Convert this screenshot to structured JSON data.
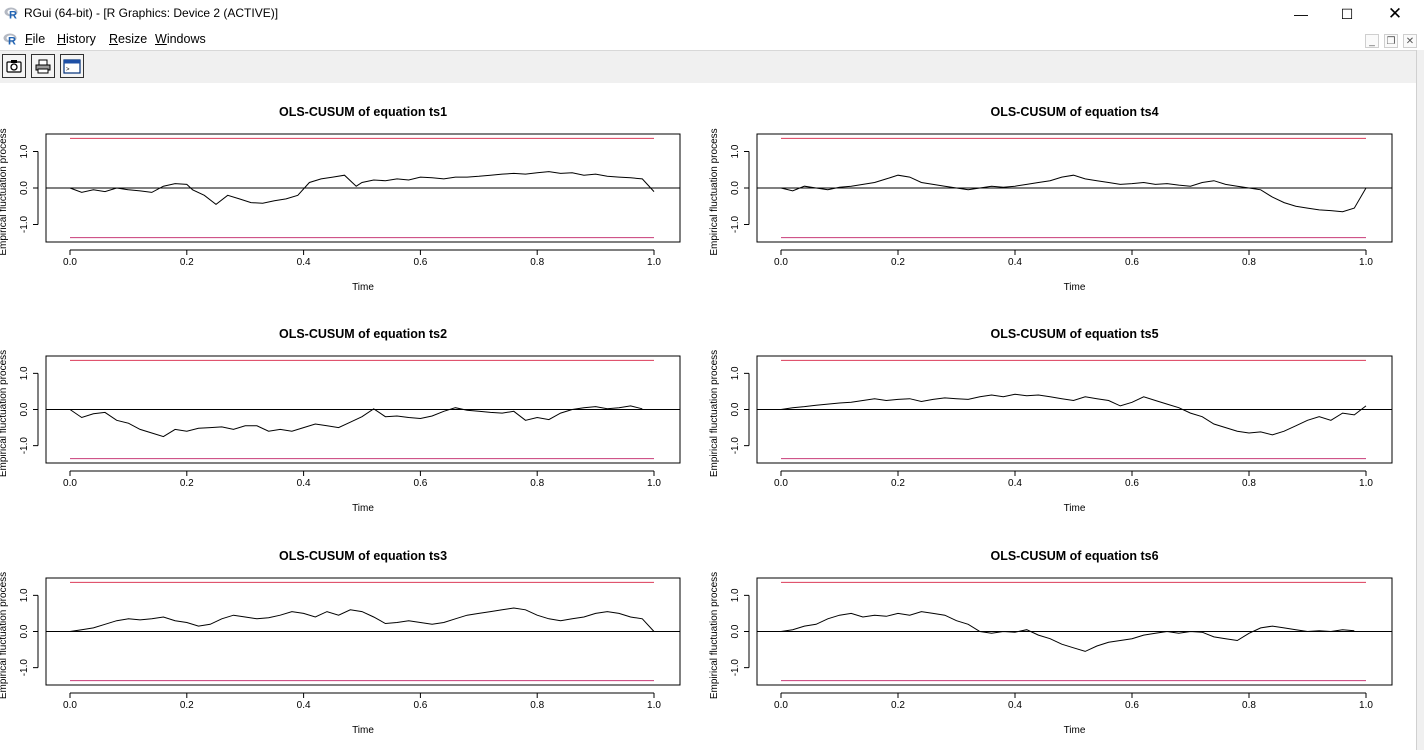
{
  "window": {
    "title": "RGui (64-bit) - [R Graphics: Device 2 (ACTIVE)]",
    "minimize_glyph": "—",
    "maximize_glyph": "☐",
    "close_glyph": "✕",
    "app_icon": "r-logo-icon"
  },
  "menu": {
    "items": [
      {
        "first": "F",
        "rest": "ile"
      },
      {
        "first": "H",
        "rest": "istory"
      },
      {
        "first": "R",
        "rest": "esize"
      },
      {
        "first": "W",
        "rest": "indows"
      }
    ],
    "mdi_minimize_glyph": "_",
    "mdi_restore_glyph": "❐",
    "mdi_close_glyph": "✕"
  },
  "toolbar": {
    "buttons": [
      {
        "icon": "camera-icon"
      },
      {
        "icon": "printer-icon"
      },
      {
        "icon": "console-window-icon"
      }
    ]
  },
  "colors": {
    "boundary_upper": "#dc3c5a",
    "boundary_lower": "#c83c78",
    "zero_line": "#000000",
    "process_line": "#000000"
  },
  "chart_data": [
    {
      "type": "line",
      "title": "OLS-CUSUM of equation ts1",
      "xlabel": "Time",
      "ylabel": "Empirical fluctuation process",
      "xticks": [
        "0.0",
        "0.2",
        "0.4",
        "0.6",
        "0.8",
        "1.0"
      ],
      "yticks": [
        "-1.0",
        "0.0",
        "1.0"
      ],
      "xlim": [
        0,
        1
      ],
      "ylim": [
        -1.48,
        1.48
      ],
      "boundary": 1.36,
      "series": [
        {
          "x": [
            0.0,
            0.02,
            0.04,
            0.06,
            0.08,
            0.1,
            0.12,
            0.14,
            0.16,
            0.18,
            0.2,
            0.21,
            0.23,
            0.25,
            0.27,
            0.29,
            0.31,
            0.33,
            0.35,
            0.37,
            0.39,
            0.41,
            0.43,
            0.45,
            0.47,
            0.49,
            0.5,
            0.52,
            0.54,
            0.56,
            0.58,
            0.6,
            0.62,
            0.64,
            0.66,
            0.68,
            0.7,
            0.72,
            0.74,
            0.76,
            0.78,
            0.8,
            0.82,
            0.84,
            0.86,
            0.88,
            0.9,
            0.92,
            0.94,
            0.96,
            0.98,
            1.0
          ],
          "y": [
            0.0,
            -0.12,
            -0.05,
            -0.1,
            0.0,
            -0.05,
            -0.08,
            -0.12,
            0.05,
            0.12,
            0.1,
            -0.05,
            -0.2,
            -0.45,
            -0.2,
            -0.3,
            -0.4,
            -0.42,
            -0.35,
            -0.3,
            -0.2,
            0.15,
            0.25,
            0.3,
            0.35,
            0.05,
            0.15,
            0.22,
            0.2,
            0.25,
            0.22,
            0.3,
            0.28,
            0.25,
            0.3,
            0.3,
            0.32,
            0.35,
            0.38,
            0.4,
            0.38,
            0.42,
            0.45,
            0.4,
            0.42,
            0.35,
            0.38,
            0.32,
            0.3,
            0.28,
            0.25,
            -0.1
          ]
        }
      ]
    },
    {
      "type": "line",
      "title": "OLS-CUSUM of equation ts2",
      "xlabel": "Time",
      "ylabel": "Empirical fluctuation process",
      "xticks": [
        "0.0",
        "0.2",
        "0.4",
        "0.6",
        "0.8",
        "1.0"
      ],
      "yticks": [
        "-1.0",
        "0.0",
        "1.0"
      ],
      "xlim": [
        0,
        1
      ],
      "ylim": [
        -1.48,
        1.48
      ],
      "boundary": 1.36,
      "series": [
        {
          "x": [
            0.0,
            0.02,
            0.04,
            0.06,
            0.08,
            0.1,
            0.12,
            0.14,
            0.16,
            0.18,
            0.2,
            0.22,
            0.24,
            0.26,
            0.28,
            0.3,
            0.32,
            0.34,
            0.36,
            0.38,
            0.4,
            0.42,
            0.44,
            0.46,
            0.48,
            0.5,
            0.52,
            0.54,
            0.56,
            0.58,
            0.6,
            0.62,
            0.64,
            0.66,
            0.68,
            0.7,
            0.72,
            0.74,
            0.76,
            0.78,
            0.8,
            0.82,
            0.84,
            0.86,
            0.88,
            0.9,
            0.92,
            0.94,
            0.96,
            0.98
          ],
          "y": [
            0.0,
            -0.22,
            -0.12,
            -0.08,
            -0.3,
            -0.38,
            -0.55,
            -0.65,
            -0.75,
            -0.55,
            -0.6,
            -0.52,
            -0.5,
            -0.48,
            -0.55,
            -0.45,
            -0.45,
            -0.6,
            -0.55,
            -0.6,
            -0.5,
            -0.4,
            -0.45,
            -0.5,
            -0.35,
            -0.2,
            0.02,
            -0.2,
            -0.18,
            -0.22,
            -0.25,
            -0.18,
            -0.05,
            0.05,
            -0.02,
            -0.05,
            -0.08,
            -0.1,
            -0.05,
            -0.3,
            -0.22,
            -0.28,
            -0.1,
            0.0,
            0.05,
            0.08,
            0.02,
            0.05,
            0.1,
            0.02
          ]
        }
      ]
    },
    {
      "type": "line",
      "title": "OLS-CUSUM of equation ts3",
      "xlabel": "Time",
      "ylabel": "Empirical fluctuation process",
      "xticks": [
        "0.0",
        "0.2",
        "0.4",
        "0.6",
        "0.8",
        "1.0"
      ],
      "yticks": [
        "-1.0",
        "0.0",
        "1.0"
      ],
      "xlim": [
        0,
        1
      ],
      "ylim": [
        -1.48,
        1.48
      ],
      "boundary": 1.36,
      "series": [
        {
          "x": [
            0.0,
            0.02,
            0.04,
            0.06,
            0.08,
            0.1,
            0.12,
            0.14,
            0.16,
            0.18,
            0.2,
            0.22,
            0.24,
            0.26,
            0.28,
            0.3,
            0.32,
            0.34,
            0.36,
            0.38,
            0.4,
            0.42,
            0.44,
            0.46,
            0.48,
            0.5,
            0.52,
            0.54,
            0.56,
            0.58,
            0.6,
            0.62,
            0.64,
            0.66,
            0.68,
            0.7,
            0.72,
            0.74,
            0.76,
            0.78,
            0.8,
            0.82,
            0.84,
            0.86,
            0.88,
            0.9,
            0.92,
            0.94,
            0.96,
            0.98,
            1.0
          ],
          "y": [
            0.0,
            0.05,
            0.1,
            0.2,
            0.3,
            0.35,
            0.32,
            0.35,
            0.4,
            0.3,
            0.25,
            0.15,
            0.2,
            0.35,
            0.45,
            0.4,
            0.35,
            0.38,
            0.45,
            0.55,
            0.5,
            0.4,
            0.55,
            0.45,
            0.6,
            0.55,
            0.4,
            0.22,
            0.25,
            0.3,
            0.25,
            0.2,
            0.25,
            0.35,
            0.45,
            0.5,
            0.55,
            0.6,
            0.65,
            0.6,
            0.45,
            0.35,
            0.3,
            0.35,
            0.4,
            0.5,
            0.55,
            0.5,
            0.4,
            0.35,
            0.0
          ]
        }
      ]
    },
    {
      "type": "line",
      "title": "OLS-CUSUM of equation ts4",
      "xlabel": "Time",
      "ylabel": "Empirical fluctuation process",
      "xticks": [
        "0.0",
        "0.2",
        "0.4",
        "0.6",
        "0.8",
        "1.0"
      ],
      "yticks": [
        "-1.0",
        "0.0",
        "1.0"
      ],
      "xlim": [
        0,
        1
      ],
      "ylim": [
        -1.48,
        1.48
      ],
      "boundary": 1.36,
      "series": [
        {
          "x": [
            0.0,
            0.02,
            0.04,
            0.06,
            0.08,
            0.1,
            0.12,
            0.14,
            0.16,
            0.18,
            0.2,
            0.22,
            0.24,
            0.26,
            0.28,
            0.3,
            0.32,
            0.34,
            0.36,
            0.38,
            0.4,
            0.42,
            0.44,
            0.46,
            0.48,
            0.5,
            0.52,
            0.54,
            0.56,
            0.58,
            0.6,
            0.62,
            0.64,
            0.66,
            0.68,
            0.7,
            0.72,
            0.74,
            0.76,
            0.78,
            0.8,
            0.82,
            0.84,
            0.86,
            0.88,
            0.9,
            0.92,
            0.94,
            0.96,
            0.98,
            1.0
          ],
          "y": [
            0.0,
            -0.08,
            0.05,
            0.0,
            -0.05,
            0.02,
            0.05,
            0.1,
            0.15,
            0.25,
            0.35,
            0.3,
            0.15,
            0.1,
            0.05,
            0.0,
            -0.05,
            0.0,
            0.05,
            0.02,
            0.05,
            0.1,
            0.15,
            0.2,
            0.3,
            0.35,
            0.25,
            0.2,
            0.15,
            0.1,
            0.12,
            0.15,
            0.1,
            0.12,
            0.08,
            0.05,
            0.15,
            0.2,
            0.1,
            0.05,
            0.0,
            -0.05,
            -0.25,
            -0.4,
            -0.5,
            -0.55,
            -0.6,
            -0.62,
            -0.65,
            -0.55,
            0.0
          ]
        }
      ]
    },
    {
      "type": "line",
      "title": "OLS-CUSUM of equation ts5",
      "xlabel": "Time",
      "ylabel": "Empirical fluctuation process",
      "xticks": [
        "0.0",
        "0.2",
        "0.4",
        "0.6",
        "0.8",
        "1.0"
      ],
      "yticks": [
        "-1.0",
        "0.0",
        "1.0"
      ],
      "xlim": [
        0,
        1
      ],
      "ylim": [
        -1.48,
        1.48
      ],
      "boundary": 1.36,
      "series": [
        {
          "x": [
            0.0,
            0.02,
            0.04,
            0.06,
            0.08,
            0.1,
            0.12,
            0.14,
            0.16,
            0.18,
            0.2,
            0.22,
            0.24,
            0.26,
            0.28,
            0.3,
            0.32,
            0.34,
            0.36,
            0.38,
            0.4,
            0.42,
            0.44,
            0.46,
            0.48,
            0.5,
            0.52,
            0.54,
            0.56,
            0.58,
            0.6,
            0.62,
            0.64,
            0.66,
            0.68,
            0.7,
            0.72,
            0.74,
            0.76,
            0.78,
            0.8,
            0.82,
            0.84,
            0.86,
            0.88,
            0.9,
            0.92,
            0.94,
            0.96,
            0.98,
            1.0
          ],
          "y": [
            0.0,
            0.05,
            0.08,
            0.12,
            0.15,
            0.18,
            0.2,
            0.25,
            0.3,
            0.25,
            0.28,
            0.3,
            0.22,
            0.28,
            0.32,
            0.3,
            0.28,
            0.35,
            0.4,
            0.35,
            0.42,
            0.38,
            0.4,
            0.35,
            0.3,
            0.25,
            0.35,
            0.3,
            0.25,
            0.1,
            0.2,
            0.35,
            0.25,
            0.15,
            0.05,
            -0.1,
            -0.2,
            -0.4,
            -0.5,
            -0.6,
            -0.65,
            -0.62,
            -0.7,
            -0.6,
            -0.45,
            -0.3,
            -0.2,
            -0.3,
            -0.1,
            -0.15,
            0.1
          ]
        }
      ]
    },
    {
      "type": "line",
      "title": "OLS-CUSUM of equation ts6",
      "xlabel": "Time",
      "ylabel": "Empirical fluctuation process",
      "xticks": [
        "0.0",
        "0.2",
        "0.4",
        "0.6",
        "0.8",
        "1.0"
      ],
      "yticks": [
        "-1.0",
        "0.0",
        "1.0"
      ],
      "xlim": [
        0,
        1
      ],
      "ylim": [
        -1.48,
        1.48
      ],
      "boundary": 1.36,
      "series": [
        {
          "x": [
            0.0,
            0.02,
            0.04,
            0.06,
            0.08,
            0.1,
            0.12,
            0.14,
            0.16,
            0.18,
            0.2,
            0.22,
            0.24,
            0.26,
            0.28,
            0.3,
            0.32,
            0.34,
            0.36,
            0.38,
            0.4,
            0.42,
            0.44,
            0.46,
            0.48,
            0.5,
            0.52,
            0.54,
            0.56,
            0.58,
            0.6,
            0.62,
            0.64,
            0.66,
            0.68,
            0.7,
            0.72,
            0.74,
            0.76,
            0.78,
            0.8,
            0.82,
            0.84,
            0.86,
            0.88,
            0.9,
            0.92,
            0.94,
            0.96,
            0.98
          ],
          "y": [
            0.0,
            0.05,
            0.15,
            0.2,
            0.35,
            0.45,
            0.5,
            0.4,
            0.45,
            0.42,
            0.5,
            0.45,
            0.55,
            0.5,
            0.45,
            0.3,
            0.2,
            0.0,
            -0.05,
            0.0,
            -0.02,
            0.05,
            -0.1,
            -0.2,
            -0.35,
            -0.45,
            -0.55,
            -0.4,
            -0.3,
            -0.25,
            -0.2,
            -0.1,
            -0.05,
            0.0,
            -0.05,
            0.0,
            -0.02,
            -0.15,
            -0.2,
            -0.25,
            -0.05,
            0.1,
            0.15,
            0.1,
            0.05,
            0.0,
            0.02,
            0.0,
            0.05,
            0.02
          ]
        }
      ]
    }
  ]
}
